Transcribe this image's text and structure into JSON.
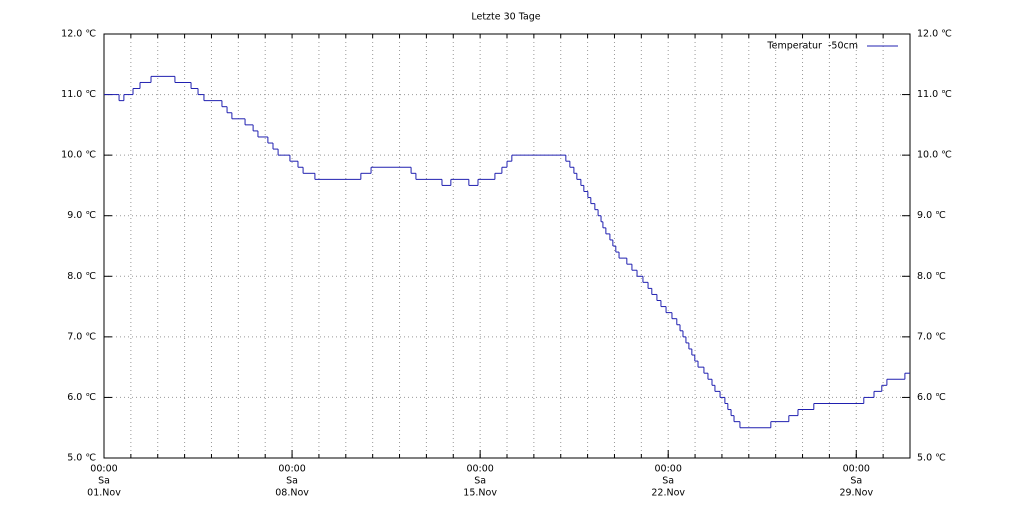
{
  "chart_data": {
    "type": "line",
    "step": "post",
    "title": "Letzte 30 Tage",
    "x": [
      0,
      0.56,
      0.74,
      1.08,
      1.34,
      1.75,
      2.64,
      3.24,
      3.5,
      3.72,
      4.39,
      4.58,
      4.76,
      5.25,
      5.55,
      5.73,
      6.1,
      6.29,
      6.48,
      6.92,
      7.22,
      7.41,
      7.85,
      9.56,
      9.94,
      11.43,
      11.61,
      12.58,
      12.91,
      13.58,
      13.92,
      14.55,
      14.81,
      15.0,
      15.18,
      17.19,
      17.34,
      17.49,
      17.6,
      17.75,
      17.86,
      18.01,
      18.12,
      18.27,
      18.39,
      18.5,
      18.57,
      18.68,
      18.83,
      18.94,
      19.05,
      19.17,
      19.46,
      19.65,
      19.84,
      20.06,
      20.25,
      20.39,
      20.58,
      20.73,
      20.92,
      21.14,
      21.32,
      21.44,
      21.55,
      21.66,
      21.77,
      21.88,
      21.99,
      22.11,
      22.33,
      22.48,
      22.63,
      22.74,
      22.93,
      23.11,
      23.22,
      23.34,
      23.45,
      23.67,
      24.82,
      25.49,
      25.83,
      26.42,
      28.28,
      28.66,
      28.95,
      29.14,
      29.81
    ],
    "series": [
      {
        "name": "Temperatur  -50cm",
        "color": "#2020b0",
        "values": [
          11.0,
          10.9,
          11.0,
          11.1,
          11.2,
          11.3,
          11.2,
          11.1,
          11.0,
          10.9,
          10.8,
          10.7,
          10.6,
          10.5,
          10.4,
          10.3,
          10.2,
          10.1,
          10.0,
          9.9,
          9.8,
          9.7,
          9.6,
          9.7,
          9.8,
          9.7,
          9.6,
          9.5,
          9.6,
          9.5,
          9.6,
          9.7,
          9.8,
          9.9,
          10.0,
          9.9,
          9.8,
          9.7,
          9.6,
          9.5,
          9.4,
          9.3,
          9.2,
          9.1,
          9.0,
          8.9,
          8.8,
          8.7,
          8.6,
          8.5,
          8.4,
          8.3,
          8.2,
          8.1,
          8.0,
          7.9,
          7.8,
          7.7,
          7.6,
          7.5,
          7.4,
          7.3,
          7.2,
          7.1,
          7.0,
          6.9,
          6.8,
          6.7,
          6.6,
          6.5,
          6.4,
          6.3,
          6.2,
          6.1,
          6.0,
          5.9,
          5.8,
          5.7,
          5.6,
          5.5,
          5.6,
          5.7,
          5.8,
          5.9,
          6.0,
          6.1,
          6.2,
          6.3,
          6.4
        ]
      }
    ],
    "xlim": [
      0,
      30
    ],
    "xticks": [
      {
        "value": 0,
        "label": "00:00",
        "weekday": "Sa",
        "date": "01.Nov"
      },
      {
        "value": 7,
        "label": "00:00",
        "weekday": "Sa",
        "date": "08.Nov"
      },
      {
        "value": 14,
        "label": "00:00",
        "weekday": "Sa",
        "date": "15.Nov"
      },
      {
        "value": 21,
        "label": "00:00",
        "weekday": "Sa",
        "date": "22.Nov"
      },
      {
        "value": 28,
        "label": "00:00",
        "weekday": "Sa",
        "date": "29.Nov"
      }
    ],
    "xgrid": [
      0,
      1,
      2,
      3,
      4,
      5,
      6,
      7,
      8,
      9,
      10,
      11,
      12,
      13,
      14,
      15,
      16,
      17,
      18,
      19,
      20,
      21,
      22,
      23,
      24,
      25,
      26,
      27,
      28,
      29,
      30
    ],
    "ylim": [
      5,
      12
    ],
    "yticks": [
      {
        "value": 5,
        "label": "5.0 ℃"
      },
      {
        "value": 6,
        "label": "6.0 ℃"
      },
      {
        "value": 7,
        "label": "7.0 ℃"
      },
      {
        "value": 8,
        "label": "8.0 ℃"
      },
      {
        "value": 9,
        "label": "9.0 ℃"
      },
      {
        "value": 10,
        "label": "10.0 ℃"
      },
      {
        "value": 11,
        "label": "11.0 ℃"
      },
      {
        "value": 12,
        "label": "12.0 ℃"
      }
    ],
    "mirror_y_axis": true,
    "grid": true,
    "legend": "top-right"
  }
}
